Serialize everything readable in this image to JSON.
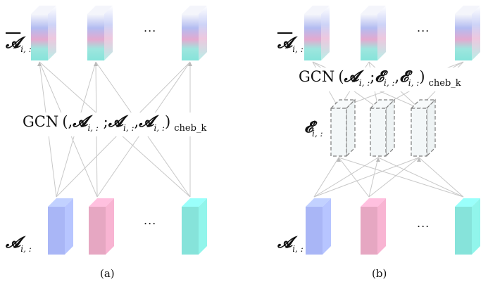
{
  "colors": {
    "blue": "#a9b6f6",
    "pink": "#e6a7c2",
    "teal": "#86e3da",
    "edge": "#c8c8c8",
    "dashed": "#7d7d7d",
    "dashed_fill": "#f3f7f8"
  },
  "panel_a": {
    "top_label": {
      "symbol": "Ā",
      "base": "𝓐",
      "sub": "i, :"
    },
    "gcn": {
      "name": "GCN",
      "args": "(,𝓐i, : ;𝓐i, : ,𝓐i, :)",
      "sub": "cheb_k"
    },
    "bottom_label": {
      "base": "𝓐",
      "sub": "i, :"
    },
    "dots": "...",
    "caption": "(a)"
  },
  "panel_b": {
    "top_label": {
      "base": "𝓐",
      "sub": "i, :"
    },
    "gcn": {
      "name": "GCN",
      "sub": "cheb_k"
    },
    "mid_label": {
      "base": "𝓔",
      "sup": "t",
      "sub": "i, :"
    },
    "bottom_label": {
      "base": "𝓐",
      "sub": "i, :"
    },
    "dots": "...",
    "caption": "(b)"
  }
}
